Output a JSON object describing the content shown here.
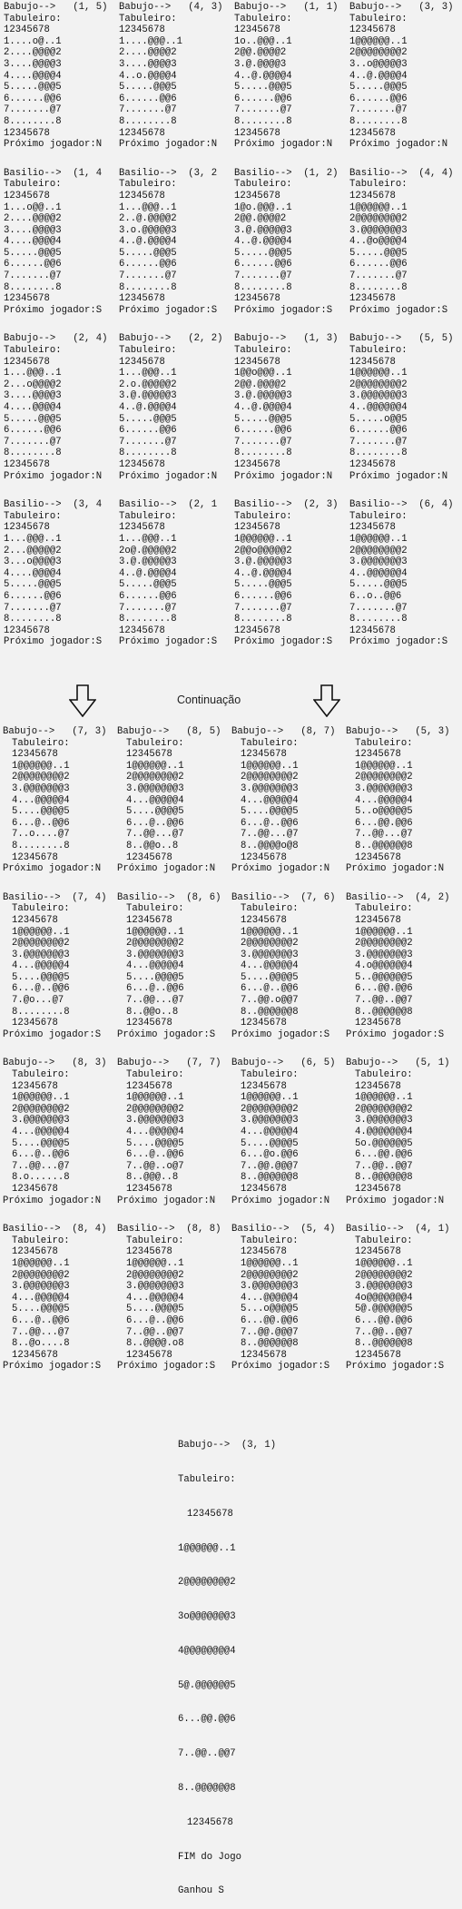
{
  "part1": [
    [
      {
        "header": "Babujo-->   (1, 5)",
        "label": "Tabuleiro:",
        "cols": "12345678",
        "rows": [
          "1....o@..1",
          "2....@@@@2",
          "3....@@@@3",
          "4....@@@@4",
          "5.....@@@5",
          "6......@@6",
          "7.......@7",
          "8........8"
        ],
        "footer": "Próximo jogador:N"
      },
      {
        "header": "Babujo-->   (4, 3)",
        "label": "Tabuleiro:",
        "cols": "12345678",
        "rows": [
          "1....@@@..1",
          "2....@@@@2",
          "3....@@@@3",
          "4..o.@@@@4",
          "5.....@@@5",
          "6......@@6",
          "7.......@7",
          "8........8"
        ],
        "footer": "Próximo jogador:N"
      },
      {
        "header": "Babujo-->   (1, 1)",
        "label": "Tabuleiro:",
        "cols": "12345678",
        "rows": [
          "1o..@@@..1",
          "2@@.@@@@2",
          "3.@.@@@@3",
          "4..@.@@@@4",
          "5.....@@@5",
          "6......@@6",
          "7.......@7",
          "8........8"
        ],
        "footer": "Próximo jogador:N"
      },
      {
        "header": "Babujo-->   (3, 3)",
        "label": "Tabuleiro:",
        "cols": "12345678",
        "rows": [
          "1@@@@@@..1",
          "2@@@@@@@@2",
          "3..o@@@@@3",
          "4..@.@@@@4",
          "5.....@@@5",
          "6......@@6",
          "7.......@7",
          "8........8"
        ],
        "footer": "Próximo jogador:N"
      }
    ],
    [
      {
        "header": "Basilio-->  (1, 4",
        "label": "Tabuleiro:",
        "cols": "12345678",
        "rows": [
          "1...o@@..1",
          "2....@@@@2",
          "3....@@@@3",
          "4....@@@@4",
          "5.....@@@5",
          "6......@@6",
          "7.......@7",
          "8........8"
        ],
        "footer": "Próximo jogador:S"
      },
      {
        "header": "Basilio-->  (3, 2",
        "label": "Tabuleiro:",
        "cols": "12345678",
        "rows": [
          "1...@@@..1",
          "2..@.@@@@2",
          "3.o.@@@@@3",
          "4..@.@@@@4",
          "5.....@@@5",
          "6......@@6",
          "7.......@7",
          "8........8"
        ],
        "footer": "Próximo jogador:S"
      },
      {
        "header": "Basilio-->  (1, 2)",
        "label": "Tabuleiro:",
        "cols": "12345678",
        "rows": [
          "1@o.@@@..1",
          "2@@.@@@@2",
          "3.@.@@@@@3",
          "4..@.@@@@4",
          "5.....@@@5",
          "6......@@6",
          "7.......@7",
          "8........8"
        ],
        "footer": "Próximo jogador:S"
      },
      {
        "header": "Basilio-->  (4, 4)",
        "label": "Tabuleiro:",
        "cols": "12345678",
        "rows": [
          "1@@@@@@..1",
          "2@@@@@@@@2",
          "3.@@@@@@@3",
          "4..@o@@@@4",
          "5.....@@@5",
          "6......@@6",
          "7.......@7",
          "8........8"
        ],
        "footer": "Próximo jogador:S"
      }
    ],
    [
      {
        "header": "Babujo-->   (2, 4)",
        "label": "Tabuleiro:",
        "cols": "12345678",
        "rows": [
          "1...@@@..1",
          "2...o@@@@2",
          "3....@@@@3",
          "4....@@@@4",
          "5.....@@@5",
          "6......@@6",
          "7.......@7",
          "8........8"
        ],
        "footer": "Próximo jogador:N"
      },
      {
        "header": "Babujo-->   (2, 2)",
        "label": "Tabuleiro:",
        "cols": "12345678",
        "rows": [
          "1...@@@..1",
          "2.o.@@@@@2",
          "3.@.@@@@@3",
          "4..@.@@@@4",
          "5.....@@@5",
          "6......@@6",
          "7.......@7",
          "8........8"
        ],
        "footer": "Próximo jogador:N"
      },
      {
        "header": "Babujo-->   (1, 3)",
        "label": "Tabuleiro:",
        "cols": "12345678",
        "rows": [
          "1@@o@@@..1",
          "2@@.@@@@2",
          "3.@.@@@@@3",
          "4..@.@@@@4",
          "5.....@@@5",
          "6......@@6",
          "7.......@7",
          "8........8"
        ],
        "footer": "Próximo jogador:N"
      },
      {
        "header": "Babujo-->   (5, 5)",
        "label": "Tabuleiro:",
        "cols": "12345678",
        "rows": [
          "1@@@@@@..1",
          "2@@@@@@@@2",
          "3.@@@@@@@3",
          "4..@@@@@@4",
          "5.....o@@5",
          "6......@@6",
          "7.......@7",
          "8........8"
        ],
        "footer": "Próximo jogador:N"
      }
    ],
    [
      {
        "header": "Basilio-->  (3, 4",
        "label": "Tabuleiro:",
        "cols": "12345678",
        "rows": [
          "1...@@@..1",
          "2...@@@@@2",
          "3...o@@@@3",
          "4....@@@@4",
          "5.....@@@5",
          "6......@@6",
          "7.......@7",
          "8........8"
        ],
        "footer": "Próximo jogador:S"
      },
      {
        "header": "Basilio-->  (2, 1",
        "label": "Tabuleiro:",
        "cols": "12345678",
        "rows": [
          "1...@@@..1",
          "2o@.@@@@@2",
          "3.@.@@@@@3",
          "4..@.@@@@4",
          "5.....@@@5",
          "6......@@6",
          "7.......@7",
          "8........8"
        ],
        "footer": "Próximo jogador:S"
      },
      {
        "header": "Basilio-->  (2, 3)",
        "label": "Tabuleiro:",
        "cols": "12345678",
        "rows": [
          "1@@@@@@..1",
          "2@@o@@@@@2",
          "3.@.@@@@@3",
          "4..@.@@@@4",
          "5.....@@@5",
          "6......@@6",
          "7.......@7",
          "8........8"
        ],
        "footer": "Próximo jogador:S"
      },
      {
        "header": "Basilio-->  (6, 4)",
        "label": "Tabuleiro:",
        "cols": "12345678",
        "rows": [
          "1@@@@@@..1",
          "2@@@@@@@@2",
          "3.@@@@@@@3",
          "4..@@@@@@4",
          "5.....@@@5",
          "6..o..@@6",
          "7.......@7",
          "8........8"
        ],
        "footer": "Próximo jogador:S"
      }
    ]
  ],
  "continuation_label": "Continuação",
  "part2": [
    [
      {
        "header": "Babujo-->   (7, 3)",
        "label": "Tabuleiro:",
        "cols": "12345678",
        "rows": [
          "1@@@@@@..1",
          "2@@@@@@@@2",
          "3.@@@@@@@3",
          "4...@@@@@4",
          "5....@@@@5",
          "6...@..@@6",
          "7..o....@7",
          "8........8"
        ],
        "footer": "Próximo jogador:N"
      },
      {
        "header": "Babujo-->   (8, 5)",
        "label": "Tabuleiro:",
        "cols": "12345678",
        "rows": [
          "1@@@@@@..1",
          "2@@@@@@@@2",
          "3.@@@@@@@3",
          "4...@@@@@4",
          "5....@@@@5",
          "6...@..@@6",
          "7..@@...@7",
          "8..@@o..8"
        ],
        "footer": "Próximo jogador:N"
      },
      {
        "header": "Babujo-->   (8, 7)",
        "label": "Tabuleiro:",
        "cols": "12345678",
        "rows": [
          "1@@@@@@..1",
          "2@@@@@@@@2",
          "3.@@@@@@@3",
          "4...@@@@@4",
          "5....@@@@5",
          "6...@..@@6",
          "7..@@...@7",
          "8..@@@@o@8"
        ],
        "footer": "Próximo jogador:N"
      },
      {
        "header": "Babujo-->   (5, 3)",
        "label": "Tabuleiro:",
        "cols": "12345678",
        "rows": [
          "1@@@@@@..1",
          "2@@@@@@@@2",
          "3.@@@@@@@3",
          "4...@@@@@4",
          "5..o@@@@@5",
          "6...@@.@@6",
          "7..@@...@7",
          "8..@@@@@@8"
        ],
        "footer": "Próximo jogador:N"
      }
    ],
    [
      {
        "header": "Basilio-->  (7, 4)",
        "label": "Tabuleiro:",
        "cols": "12345678",
        "rows": [
          "1@@@@@@..1",
          "2@@@@@@@@2",
          "3.@@@@@@@3",
          "4...@@@@@4",
          "5....@@@@5",
          "6...@..@@6",
          "7.@o...@7",
          "8........8"
        ],
        "footer": "Próximo jogador:S"
      },
      {
        "header": "Basilio-->  (8, 6)",
        "label": "Tabuleiro:",
        "cols": "12345678",
        "rows": [
          "1@@@@@@..1",
          "2@@@@@@@@2",
          "3.@@@@@@@3",
          "4...@@@@@4",
          "5....@@@@5",
          "6...@..@@6",
          "7..@@...@7",
          "8..@@o..8"
        ],
        "footer": "Próximo jogador:S"
      },
      {
        "header": "Basilio-->  (7, 6)",
        "label": "Tabuleiro:",
        "cols": "12345678",
        "rows": [
          "1@@@@@@..1",
          "2@@@@@@@@2",
          "3.@@@@@@@3",
          "4...@@@@@4",
          "5....@@@@5",
          "6...@..@@6",
          "7..@@.o@@7",
          "8..@@@@@@8"
        ],
        "footer": "Próximo jogador:S"
      },
      {
        "header": "Basilio-->  (4, 2)",
        "label": "Tabuleiro:",
        "cols": "12345678",
        "rows": [
          "1@@@@@@..1",
          "2@@@@@@@@2",
          "3.@@@@@@@3",
          "4.o@@@@@@4",
          "5..@@@@@@5",
          "6...@@.@@6",
          "7..@@..@@7",
          "8..@@@@@@8"
        ],
        "footer": "Próximo jogador:S"
      }
    ],
    [
      {
        "header": "Babujo-->   (8, 3)",
        "label": "Tabuleiro:",
        "cols": "12345678",
        "rows": [
          "1@@@@@@..1",
          "2@@@@@@@@2",
          "3.@@@@@@@3",
          "4...@@@@@4",
          "5....@@@@5",
          "6...@..@@6",
          "7..@@...@7",
          "8.o......8"
        ],
        "footer": "Próximo jogador:N"
      },
      {
        "header": "Babujo-->   (7, 7)",
        "label": "Tabuleiro:",
        "cols": "12345678",
        "rows": [
          "1@@@@@@..1",
          "2@@@@@@@@2",
          "3.@@@@@@@3",
          "4...@@@@@4",
          "5....@@@@5",
          "6...@..@@6",
          "7..@@..o@7",
          "8..@@@..8"
        ],
        "footer": "Próximo jogador:N"
      },
      {
        "header": "Babujo-->   (6, 5)",
        "label": "Tabuleiro:",
        "cols": "12345678",
        "rows": [
          "1@@@@@@..1",
          "2@@@@@@@@2",
          "3.@@@@@@@3",
          "4...@@@@@4",
          "5....@@@@5",
          "6...@o.@@6",
          "7..@@.@@@7",
          "8..@@@@@@8"
        ],
        "footer": "Próximo jogador:N"
      },
      {
        "header": "Babujo-->   (5, 1)",
        "label": "Tabuleiro:",
        "cols": "12345678",
        "rows": [
          "1@@@@@@..1",
          "2@@@@@@@@2",
          "3.@@@@@@@3",
          "4.@@@@@@@4",
          "5o.@@@@@@5",
          "6...@@.@@6",
          "7..@@..@@7",
          "8..@@@@@@8"
        ],
        "footer": "Próximo jogador:N"
      }
    ],
    [
      {
        "header": "Basilio-->  (8, 4)",
        "label": "Tabuleiro:",
        "cols": "12345678",
        "rows": [
          "1@@@@@@..1",
          "2@@@@@@@@2",
          "3.@@@@@@@3",
          "4...@@@@@4",
          "5....@@@@5",
          "6...@..@@6",
          "7..@@...@7",
          "8..@o....8"
        ],
        "footer": "Próximo jogador:S"
      },
      {
        "header": "Basilio-->  (8, 8)",
        "label": "Tabuleiro:",
        "cols": "12345678",
        "rows": [
          "1@@@@@@..1",
          "2@@@@@@@@2",
          "3.@@@@@@@3",
          "4...@@@@@4",
          "5....@@@@5",
          "6...@..@@6",
          "7..@@..@@7",
          "8..@@@@.o8"
        ],
        "footer": "Próximo jogador:S"
      },
      {
        "header": "Basilio-->  (5, 4)",
        "label": "Tabuleiro:",
        "cols": "12345678",
        "rows": [
          "1@@@@@@..1",
          "2@@@@@@@@2",
          "3.@@@@@@@3",
          "4...@@@@@4",
          "5...o@@@@5",
          "6...@@.@@6",
          "7..@@.@@@7",
          "8..@@@@@@8"
        ],
        "footer": "Próximo jogador:S"
      },
      {
        "header": "Basilio-->  (4, 1)",
        "label": "Tabuleiro:",
        "cols": "12345678",
        "rows": [
          "1@@@@@@..1",
          "2@@@@@@@@2",
          "3.@@@@@@@3",
          "4o@@@@@@@4",
          "5@.@@@@@@5",
          "6...@@.@@6",
          "7..@@..@@7",
          "8..@@@@@@8"
        ],
        "footer": "Próximo jogador:S"
      }
    ]
  ],
  "final": {
    "header": "Babujo-->  (3, 1)",
    "label": "Tabuleiro:",
    "cols": "12345678",
    "rows": [
      "1@@@@@@..1",
      "2@@@@@@@@2",
      "3o@@@@@@@3",
      "4@@@@@@@@4",
      "5@.@@@@@@5",
      "6...@@.@@6",
      "7..@@..@@7",
      "8..@@@@@@8"
    ],
    "end": "FIM do Jogo",
    "winner": "Ganhou S"
  }
}
